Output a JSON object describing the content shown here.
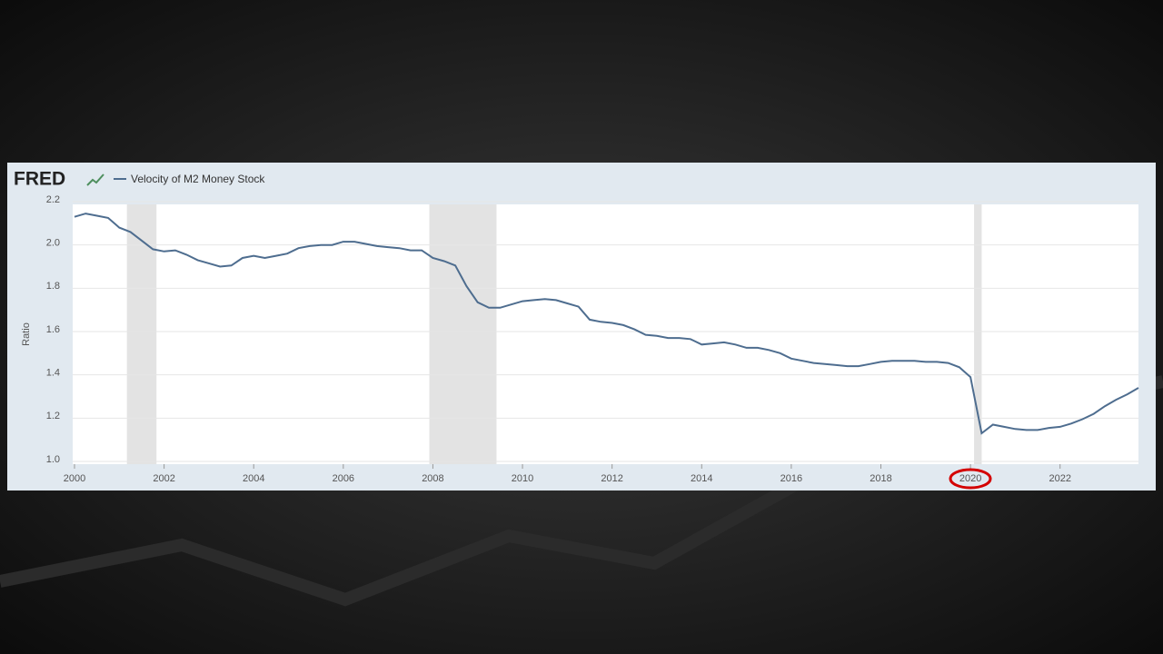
{
  "brand": "FRED",
  "chart_data": {
    "type": "line",
    "y_label": "Ratio",
    "x": [
      2000,
      2000.25,
      2000.5,
      2000.75,
      2001,
      2001.25,
      2001.5,
      2001.75,
      2002,
      2002.25,
      2002.5,
      2002.75,
      2003,
      2003.25,
      2003.5,
      2003.75,
      2004,
      2004.25,
      2004.5,
      2004.75,
      2005,
      2005.25,
      2005.5,
      2005.75,
      2006,
      2006.25,
      2006.5,
      2006.75,
      2007,
      2007.25,
      2007.5,
      2007.75,
      2008,
      2008.25,
      2008.5,
      2008.75,
      2009,
      2009.25,
      2009.5,
      2009.75,
      2010,
      2010.25,
      2010.5,
      2010.75,
      2011,
      2011.25,
      2011.5,
      2011.75,
      2012,
      2012.25,
      2012.5,
      2012.75,
      2013,
      2013.25,
      2013.5,
      2013.75,
      2014,
      2014.25,
      2014.5,
      2014.75,
      2015,
      2015.25,
      2015.5,
      2015.75,
      2016,
      2016.25,
      2016.5,
      2016.75,
      2017,
      2017.25,
      2017.5,
      2017.75,
      2018,
      2018.25,
      2018.5,
      2018.75,
      2019,
      2019.25,
      2019.5,
      2019.75,
      2020,
      2020.25,
      2020.5,
      2020.75,
      2021,
      2021.25,
      2021.5,
      2021.75,
      2022,
      2022.25,
      2022.5,
      2022.75,
      2023,
      2023.25,
      2023.5,
      2023.75
    ],
    "series": [
      {
        "name": "Velocity of M2 Money Stock",
        "color": "#4e6d8f",
        "values": [
          2.13,
          2.145,
          2.135,
          2.125,
          2.08,
          2.06,
          2.02,
          1.98,
          1.97,
          1.975,
          1.955,
          1.93,
          1.915,
          1.9,
          1.905,
          1.94,
          1.95,
          1.94,
          1.95,
          1.96,
          1.985,
          1.995,
          2.0,
          2.0,
          2.015,
          2.015,
          2.005,
          1.995,
          1.99,
          1.985,
          1.975,
          1.975,
          1.94,
          1.925,
          1.905,
          1.81,
          1.735,
          1.71,
          1.71,
          1.725,
          1.74,
          1.745,
          1.75,
          1.745,
          1.73,
          1.715,
          1.655,
          1.645,
          1.64,
          1.63,
          1.61,
          1.585,
          1.58,
          1.57,
          1.57,
          1.565,
          1.54,
          1.545,
          1.55,
          1.54,
          1.525,
          1.525,
          1.515,
          1.5,
          1.475,
          1.465,
          1.455,
          1.45,
          1.445,
          1.44,
          1.44,
          1.45,
          1.46,
          1.465,
          1.465,
          1.465,
          1.46,
          1.46,
          1.455,
          1.435,
          1.39,
          1.13,
          1.17,
          1.16,
          1.15,
          1.145,
          1.145,
          1.155,
          1.16,
          1.175,
          1.195,
          1.22,
          1.255,
          1.285,
          1.31,
          1.34
        ]
      }
    ],
    "recessions": [
      [
        2001.17,
        2001.83
      ],
      [
        2007.92,
        2009.42
      ],
      [
        2020.08,
        2020.25
      ]
    ],
    "recession_color": "#e3e3e3",
    "xlim": [
      2000,
      2023.75
    ],
    "xticks": [
      2000,
      2002,
      2004,
      2006,
      2008,
      2010,
      2012,
      2014,
      2016,
      2018,
      2020,
      2022
    ],
    "ylim": [
      1.0,
      2.2
    ],
    "yticks": [
      {
        "value": 1.0,
        "label": "1.0"
      },
      1.2,
      1.4,
      1.6,
      1.8,
      {
        "value": 2.0,
        "label": "2.0"
      },
      2.2
    ],
    "grid": true
  }
}
